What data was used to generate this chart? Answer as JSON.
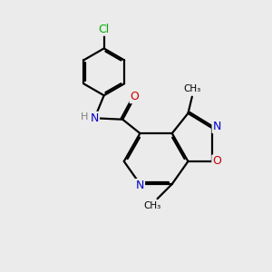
{
  "bg_color": "#ebebeb",
  "bond_color": "#000000",
  "bond_width": 1.6,
  "atom_colors": {
    "C": "#000000",
    "N": "#0000cc",
    "O": "#cc0000",
    "Cl": "#00aa00",
    "H": "#808080"
  },
  "font_size": 9,
  "font_size_small": 8,
  "font_size_methyl": 7.5
}
